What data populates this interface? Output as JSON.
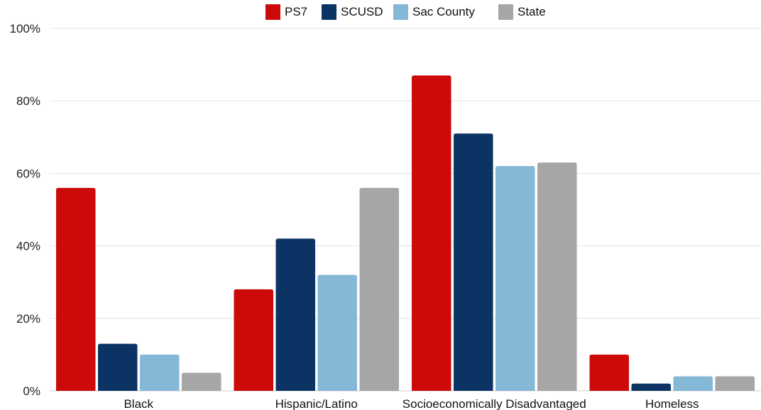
{
  "chart_data": {
    "type": "bar",
    "categories": [
      "Black",
      "Hispanic/Latino",
      "Socioeconomically Disadvantaged",
      "Homeless"
    ],
    "series": [
      {
        "name": "PS7",
        "color": "#cc0a0a",
        "values": [
          56,
          28,
          87,
          10
        ]
      },
      {
        "name": "SCUSD",
        "color": "#0b3464",
        "values": [
          13,
          42,
          71,
          2
        ]
      },
      {
        "name": "Sac County",
        "color": "#85b8d6",
        "values": [
          10,
          32,
          62,
          4
        ]
      },
      {
        "name": "State",
        "color": "#a6a6a6",
        "values": [
          5,
          56,
          63,
          4
        ]
      }
    ],
    "y_ticks": [
      "0%",
      "20%",
      "40%",
      "60%",
      "80%",
      "100%"
    ],
    "ylim": [
      0,
      100
    ],
    "grid": true,
    "legend_position": "top-center",
    "title": "",
    "xlabel": "",
    "ylabel": ""
  }
}
